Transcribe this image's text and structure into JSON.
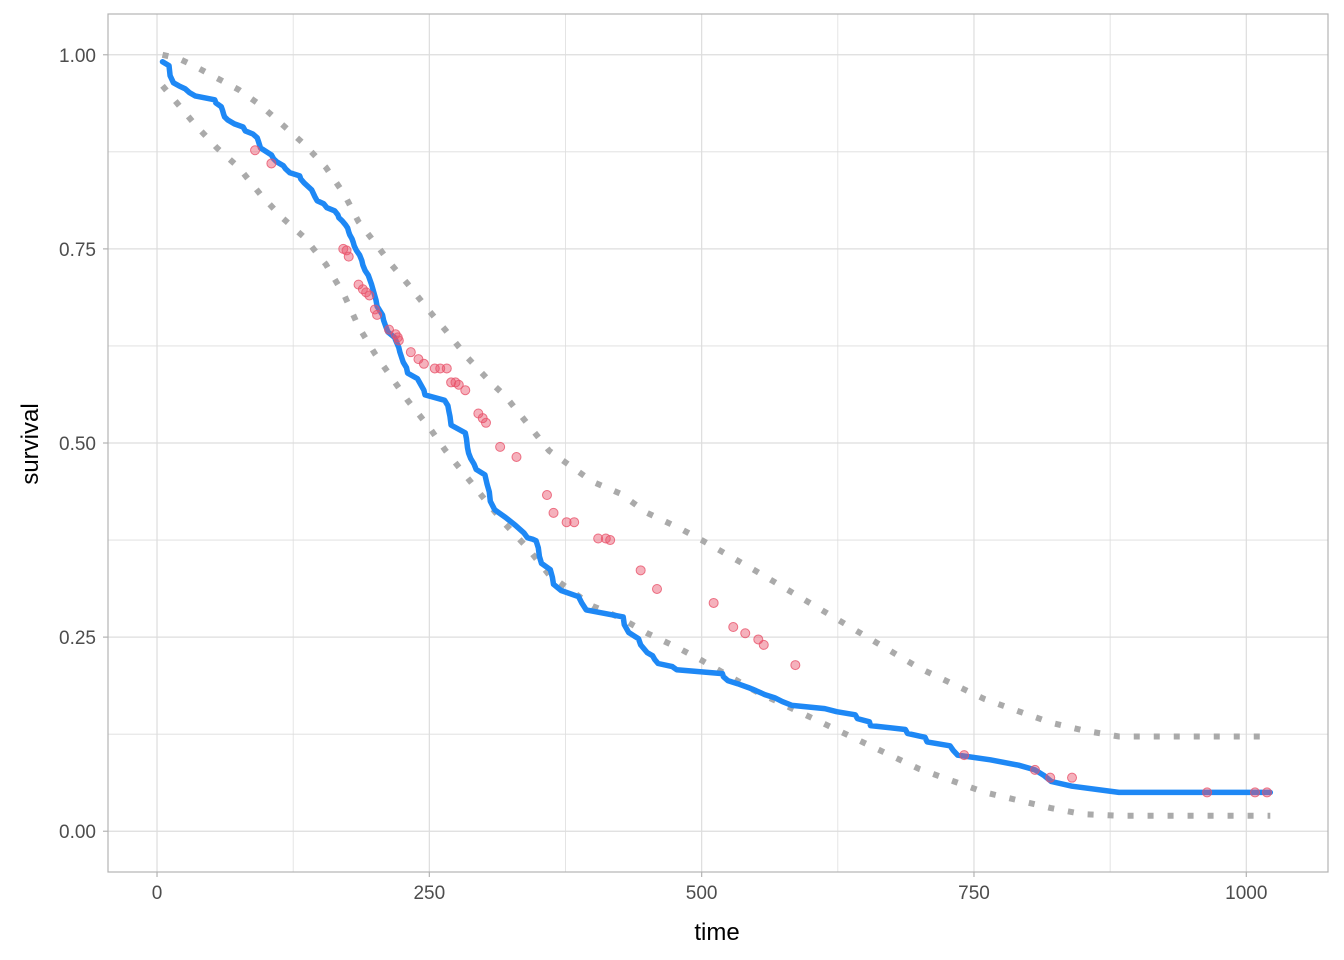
{
  "chart_data": {
    "type": "line",
    "title": "",
    "xlabel": "time",
    "ylabel": "survival",
    "xlim": [
      -45,
      1075
    ],
    "ylim": [
      -0.0525,
      1.0525
    ],
    "x_ticks": [
      0,
      250,
      500,
      750,
      1000
    ],
    "x_tick_labels": [
      "0",
      "250",
      "500",
      "750",
      "1000"
    ],
    "y_ticks": [
      0,
      0.25,
      0.5,
      0.75,
      1
    ],
    "y_tick_labels": [
      "0.00",
      "0.25",
      "0.50",
      "0.75",
      "1.00"
    ],
    "grid": true,
    "legend": "none",
    "colors": {
      "survival_line": "#1e88f5",
      "ci_band": "#aaaaaa",
      "censor_points": "#e8526a",
      "grid": "#dddddd",
      "panel_border": "#b3b3b3"
    },
    "series": [
      {
        "role": "survival",
        "style": "solid",
        "x": [
          5,
          11,
          12,
          15,
          20,
          26,
          30,
          35,
          53,
          54,
          59,
          60,
          61,
          62,
          65,
          71,
          79,
          81,
          88,
          92,
          93,
          95,
          105,
          107,
          110,
          116,
          118,
          122,
          131,
          132,
          135,
          142,
          145,
          147,
          153,
          156,
          163,
          166,
          167,
          170,
          173,
          175,
          176,
          177,
          179,
          180,
          181,
          183,
          186,
          188,
          189,
          191,
          194,
          197,
          199,
          201,
          202,
          207,
          208,
          210,
          212,
          218,
          222,
          223,
          226,
          229,
          230,
          239,
          245,
          246,
          264,
          267,
          268,
          269,
          270,
          283,
          284,
          285,
          286,
          288,
          291,
          293,
          301,
          303,
          305,
          306,
          310,
          320,
          329,
          337,
          340,
          345,
          348,
          350,
          351,
          353,
          361,
          363,
          364,
          371,
          387,
          390,
          394,
          428,
          429,
          433,
          442,
          444,
          450,
          455,
          457,
          460,
          473,
          477,
          519,
          520,
          524,
          533,
          543,
          550,
          558,
          567,
          574,
          583,
          613,
          624,
          641,
          643,
          654,
          655,
          687,
          689,
          705,
          707,
          728,
          731,
          735,
          765,
          791,
          806,
          814,
          821,
          840,
          883,
          1022
        ],
        "y": [
          0.991,
          0.986,
          0.973,
          0.964,
          0.96,
          0.956,
          0.951,
          0.947,
          0.942,
          0.938,
          0.933,
          0.929,
          0.924,
          0.92,
          0.916,
          0.911,
          0.907,
          0.902,
          0.898,
          0.893,
          0.889,
          0.88,
          0.871,
          0.866,
          0.862,
          0.857,
          0.853,
          0.848,
          0.844,
          0.84,
          0.835,
          0.826,
          0.817,
          0.812,
          0.808,
          0.803,
          0.799,
          0.794,
          0.79,
          0.786,
          0.781,
          0.777,
          0.772,
          0.768,
          0.763,
          0.759,
          0.754,
          0.748,
          0.742,
          0.735,
          0.729,
          0.722,
          0.716,
          0.704,
          0.694,
          0.684,
          0.676,
          0.665,
          0.658,
          0.65,
          0.643,
          0.636,
          0.623,
          0.617,
          0.604,
          0.597,
          0.59,
          0.583,
          0.568,
          0.562,
          0.555,
          0.548,
          0.541,
          0.534,
          0.523,
          0.513,
          0.506,
          0.494,
          0.487,
          0.48,
          0.473,
          0.466,
          0.459,
          0.447,
          0.437,
          0.425,
          0.414,
          0.404,
          0.394,
          0.384,
          0.378,
          0.376,
          0.374,
          0.365,
          0.354,
          0.345,
          0.337,
          0.327,
          0.318,
          0.31,
          0.302,
          0.294,
          0.285,
          0.276,
          0.266,
          0.256,
          0.248,
          0.24,
          0.23,
          0.226,
          0.221,
          0.216,
          0.212,
          0.208,
          0.203,
          0.199,
          0.194,
          0.19,
          0.185,
          0.181,
          0.176,
          0.172,
          0.167,
          0.162,
          0.158,
          0.154,
          0.15,
          0.145,
          0.141,
          0.136,
          0.131,
          0.126,
          0.121,
          0.115,
          0.11,
          0.104,
          0.098,
          0.092,
          0.085,
          0.079,
          0.072,
          0.064,
          0.058,
          0.05,
          0.05
        ]
      },
      {
        "role": "upper_ci",
        "style": "dotted",
        "x": [
          5,
          20,
          35,
          55,
          75,
          95,
          115,
          135,
          155,
          172,
          185,
          200,
          215,
          230,
          250,
          265,
          285,
          305,
          320,
          340,
          360,
          380,
          400,
          425,
          450,
          480,
          500,
          525,
          550,
          580,
          610,
          640,
          670,
          700,
          730,
          760,
          790,
          820,
          850,
          883,
          1022
        ],
        "y": [
          1.0,
          0.995,
          0.985,
          0.97,
          0.955,
          0.935,
          0.91,
          0.885,
          0.855,
          0.82,
          0.785,
          0.758,
          0.73,
          0.705,
          0.67,
          0.645,
          0.61,
          0.58,
          0.56,
          0.525,
          0.49,
          0.47,
          0.45,
          0.435,
          0.41,
          0.39,
          0.375,
          0.355,
          0.335,
          0.31,
          0.285,
          0.26,
          0.235,
          0.21,
          0.19,
          0.17,
          0.155,
          0.14,
          0.13,
          0.122,
          0.122
        ]
      },
      {
        "role": "lower_ci",
        "style": "dotted",
        "x": [
          5,
          20,
          35,
          55,
          75,
          95,
          115,
          135,
          155,
          172,
          185,
          200,
          215,
          230,
          250,
          265,
          285,
          305,
          320,
          340,
          360,
          380,
          400,
          425,
          450,
          480,
          500,
          525,
          550,
          580,
          610,
          640,
          670,
          700,
          730,
          760,
          790,
          820,
          850,
          883,
          1022
        ],
        "y": [
          0.96,
          0.935,
          0.91,
          0.88,
          0.855,
          0.82,
          0.79,
          0.765,
          0.73,
          0.69,
          0.65,
          0.615,
          0.585,
          0.555,
          0.52,
          0.49,
          0.455,
          0.42,
          0.395,
          0.365,
          0.33,
          0.31,
          0.29,
          0.275,
          0.255,
          0.235,
          0.22,
          0.2,
          0.18,
          0.16,
          0.14,
          0.12,
          0.1,
          0.08,
          0.065,
          0.05,
          0.04,
          0.03,
          0.022,
          0.02,
          0.02
        ]
      }
    ],
    "censor_points": {
      "x": [
        90,
        105,
        171,
        174,
        176,
        185,
        189,
        192,
        195,
        200,
        202,
        213,
        219,
        221,
        222,
        233,
        240,
        245,
        255,
        260,
        266,
        270,
        274,
        277,
        283,
        295,
        299,
        302,
        315,
        330,
        358,
        364,
        376,
        383,
        405,
        412,
        416,
        444,
        459,
        511,
        529,
        540,
        552,
        557,
        586,
        741,
        806,
        820,
        840,
        964,
        1008,
        1019
      ],
      "y": [
        0.877,
        0.86,
        0.75,
        0.748,
        0.74,
        0.704,
        0.698,
        0.694,
        0.69,
        0.672,
        0.665,
        0.646,
        0.64,
        0.636,
        0.632,
        0.617,
        0.608,
        0.602,
        0.596,
        0.596,
        0.596,
        0.578,
        0.578,
        0.575,
        0.568,
        0.538,
        0.532,
        0.526,
        0.495,
        0.482,
        0.433,
        0.41,
        0.398,
        0.398,
        0.377,
        0.377,
        0.375,
        0.336,
        0.312,
        0.294,
        0.263,
        0.255,
        0.247,
        0.24,
        0.214,
        0.098,
        0.079,
        0.069,
        0.069,
        0.05,
        0.05,
        0.05
      ]
    }
  }
}
